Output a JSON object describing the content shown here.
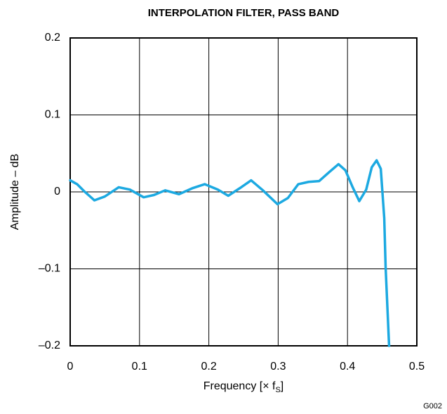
{
  "chart_data": {
    "type": "line",
    "title": "INTERPOLATION FILTER, PASS BAND",
    "xlabel": {
      "text": "Frequency [× f",
      "subscript": "S",
      "suffix": "]"
    },
    "ylabel": "Amplitude – dB",
    "footnote": "G002",
    "x": [
      0,
      0.01,
      0.02,
      0.035,
      0.05,
      0.07,
      0.086,
      0.106,
      0.121,
      0.137,
      0.157,
      0.177,
      0.194,
      0.213,
      0.228,
      0.245,
      0.261,
      0.278,
      0.299,
      0.314,
      0.329,
      0.344,
      0.359,
      0.374,
      0.387,
      0.397,
      0.407,
      0.417,
      0.427,
      0.435,
      0.442,
      0.448,
      0.453,
      0.455,
      0.46
    ],
    "series": [
      {
        "color": "#1ca9e1",
        "values": [
          0.015,
          0.01,
          0.001,
          -0.011,
          -0.006,
          0.006,
          0.003,
          -0.007,
          -0.004,
          0.002,
          -0.003,
          0.005,
          0.01,
          0.003,
          -0.005,
          0.005,
          0.015,
          0.002,
          -0.016,
          -0.008,
          0.01,
          0.013,
          0.014,
          0.026,
          0.036,
          0.028,
          0.007,
          -0.012,
          0.003,
          0.032,
          0.041,
          0.03,
          -0.034,
          -0.098,
          -0.2
        ]
      }
    ],
    "xlim": [
      0,
      0.5
    ],
    "xticks": [
      0,
      0.1,
      0.2,
      0.3,
      0.4,
      0.5
    ],
    "ylim": [
      -0.2,
      0.2
    ],
    "yticks": [
      {
        "value": -0.2,
        "label": "–0.2"
      },
      {
        "value": -0.1,
        "label": "–0.1"
      },
      0,
      0.1,
      0.2
    ],
    "grid": true
  }
}
